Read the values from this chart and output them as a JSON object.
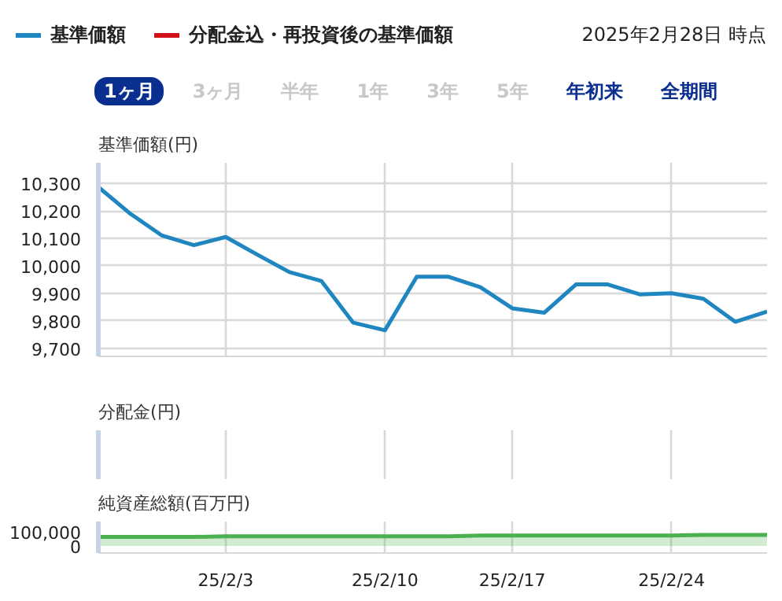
{
  "chart_data": [
    {
      "type": "line",
      "ylabel": "基準価額(円)",
      "legend": "top left",
      "grid": true,
      "annotations": [
        "2025年2月28日 時点",
        "1ヶ月",
        "3ヶ月",
        "半年",
        "1年",
        "3年",
        "5年",
        "年初来",
        "全期間"
      ],
      "categories": [
        null,
        null,
        null,
        null,
        null,
        null,
        null,
        null,
        null,
        null,
        null,
        null,
        null,
        null,
        null,
        null,
        null,
        null,
        null,
        null,
        null,
        null
      ],
      "ylim": [
        9670,
        10375
      ],
      "yticks": [
        {
          "value": 9700,
          "label": "9,700"
        },
        {
          "value": 9800,
          "label": "9,800"
        },
        {
          "value": 9900,
          "label": "9,900"
        },
        {
          "value": 10000,
          "label": "10,000"
        },
        {
          "value": 10100,
          "label": "10,100"
        },
        {
          "value": 10200,
          "label": "10,200"
        },
        {
          "value": 10300,
          "label": "10,300"
        }
      ],
      "series": [
        {
          "name": "基準価額",
          "color": "#1f86c0",
          "values": [
            10287,
            10190,
            10110,
            10075,
            10105,
            10040,
            9977,
            9945,
            9793,
            9765,
            9960,
            9960,
            9922,
            9845,
            9829,
            9932,
            9932,
            9896,
            9900,
            9880,
            9796,
            9833
          ]
        },
        {
          "name": "分配金込・再投資後の基準価額",
          "color": "#d0101b",
          "values": [
            null,
            null,
            null,
            null,
            null,
            null,
            null,
            null,
            null,
            null,
            null,
            null,
            null,
            null,
            null,
            null,
            null,
            null,
            null,
            null,
            null,
            null
          ]
        }
      ]
    },
    {
      "type": "other",
      "ylabel": "分配金(円)"
    },
    {
      "type": "area",
      "ylabel": "純資産総額(百万円)",
      "grid": "x",
      "categories": [
        null,
        null,
        null,
        null,
        "25/2/3",
        null,
        null,
        null,
        null,
        "25/2/10",
        null,
        null,
        null,
        "25/2/17",
        null,
        null,
        null,
        null,
        "25/2/24",
        null,
        null,
        null
      ],
      "ylim": [
        -50000,
        175000
      ],
      "yticks": [
        {
          "value": 0,
          "label": "0"
        },
        {
          "value": 100000,
          "label": "100,000"
        }
      ],
      "series": [
        {
          "color": "#4caf50",
          "values": [
            65000,
            65000,
            65000,
            65000,
            70000,
            70000,
            70000,
            70000,
            70000,
            70000,
            70000,
            70000,
            75000,
            75000,
            75000,
            75000,
            75000,
            75000,
            75000,
            80000,
            80000,
            80000
          ]
        }
      ]
    }
  ]
}
